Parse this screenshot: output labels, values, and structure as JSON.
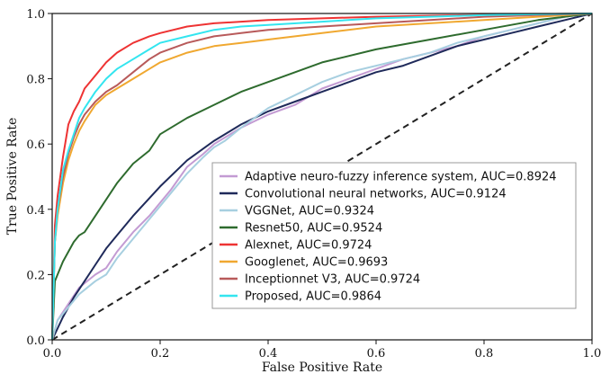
{
  "chart_data": {
    "type": "line",
    "title": "",
    "xlabel": "False Positive Rate",
    "ylabel": "True Positive Rate",
    "xlim": [
      0,
      1
    ],
    "ylim": [
      0,
      1
    ],
    "x_ticks": [
      "0.0",
      "0.2",
      "0.4",
      "0.6",
      "0.8",
      "1.0"
    ],
    "y_ticks": [
      "0.0",
      "0.2",
      "0.4",
      "0.6",
      "0.8",
      "1.0"
    ],
    "grid": false,
    "legend_position": "lower-right",
    "diagonal_reference": {
      "x": [
        0,
        1
      ],
      "y": [
        0,
        1
      ],
      "style": "dashed",
      "color": "#222222"
    },
    "series": [
      {
        "name": "Adaptive neuro-fuzzy inference system, AUC=0.8924",
        "color": "#c39bd3",
        "x": [
          0,
          0.01,
          0.03,
          0.05,
          0.08,
          0.1,
          0.12,
          0.15,
          0.18,
          0.2,
          0.22,
          0.25,
          0.28,
          0.3,
          0.32,
          0.35,
          0.4,
          0.45,
          0.5,
          0.55,
          0.6,
          0.65,
          0.7,
          0.75,
          0.8,
          0.85,
          0.9,
          0.95,
          1.0
        ],
        "y": [
          0,
          0.06,
          0.11,
          0.16,
          0.2,
          0.22,
          0.27,
          0.33,
          0.38,
          0.42,
          0.46,
          0.53,
          0.57,
          0.6,
          0.62,
          0.65,
          0.69,
          0.72,
          0.77,
          0.8,
          0.83,
          0.86,
          0.88,
          0.9,
          0.93,
          0.95,
          0.97,
          0.99,
          1.0
        ]
      },
      {
        "name": "Convolutional neural networks, AUC=0.9124",
        "color": "#1f2a5a",
        "x": [
          0,
          0.02,
          0.04,
          0.06,
          0.08,
          0.1,
          0.12,
          0.15,
          0.2,
          0.25,
          0.3,
          0.35,
          0.4,
          0.45,
          0.5,
          0.55,
          0.6,
          0.65,
          0.7,
          0.75,
          0.8,
          0.85,
          0.9,
          0.95,
          1.0
        ],
        "y": [
          0,
          0.07,
          0.13,
          0.18,
          0.23,
          0.28,
          0.32,
          0.38,
          0.47,
          0.55,
          0.61,
          0.66,
          0.7,
          0.73,
          0.76,
          0.79,
          0.82,
          0.84,
          0.87,
          0.9,
          0.92,
          0.94,
          0.96,
          0.98,
          1.0
        ]
      },
      {
        "name": "VGGNet, AUC=0.9324",
        "color": "#a7cfe0",
        "x": [
          0,
          0.01,
          0.03,
          0.05,
          0.08,
          0.1,
          0.12,
          0.15,
          0.18,
          0.2,
          0.22,
          0.25,
          0.28,
          0.3,
          0.32,
          0.35,
          0.4,
          0.45,
          0.5,
          0.55,
          0.6,
          0.65,
          0.7,
          0.75,
          0.8,
          0.85,
          0.9,
          0.95,
          1.0
        ],
        "y": [
          0,
          0.06,
          0.1,
          0.14,
          0.18,
          0.2,
          0.25,
          0.31,
          0.37,
          0.41,
          0.45,
          0.51,
          0.56,
          0.59,
          0.61,
          0.65,
          0.71,
          0.75,
          0.79,
          0.82,
          0.84,
          0.86,
          0.88,
          0.91,
          0.93,
          0.95,
          0.97,
          0.99,
          1.0
        ]
      },
      {
        "name": "Resnet50, AUC=0.9524",
        "color": "#2e6b2e",
        "x": [
          0,
          0.005,
          0.01,
          0.02,
          0.03,
          0.04,
          0.05,
          0.06,
          0.08,
          0.1,
          0.12,
          0.15,
          0.18,
          0.2,
          0.25,
          0.3,
          0.35,
          0.4,
          0.45,
          0.5,
          0.6,
          0.7,
          0.8,
          0.9,
          1.0
        ],
        "y": [
          0,
          0.18,
          0.2,
          0.24,
          0.27,
          0.3,
          0.32,
          0.33,
          0.38,
          0.43,
          0.48,
          0.54,
          0.58,
          0.63,
          0.68,
          0.72,
          0.76,
          0.79,
          0.82,
          0.85,
          0.89,
          0.92,
          0.95,
          0.98,
          1.0
        ]
      },
      {
        "name": "Alexnet, AUC=0.9724",
        "color": "#ee3333",
        "x": [
          0,
          0.005,
          0.01,
          0.02,
          0.03,
          0.04,
          0.05,
          0.06,
          0.08,
          0.1,
          0.12,
          0.15,
          0.18,
          0.2,
          0.25,
          0.3,
          0.35,
          0.4,
          0.5,
          0.6,
          0.7,
          0.8,
          0.9,
          1.0
        ],
        "y": [
          0,
          0.35,
          0.44,
          0.56,
          0.66,
          0.7,
          0.73,
          0.77,
          0.81,
          0.85,
          0.88,
          0.91,
          0.93,
          0.94,
          0.96,
          0.97,
          0.975,
          0.98,
          0.985,
          0.99,
          0.993,
          0.996,
          0.998,
          1.0
        ]
      },
      {
        "name": "Googlenet, AUC=0.9693",
        "color": "#f0a830",
        "x": [
          0,
          0.005,
          0.01,
          0.02,
          0.03,
          0.04,
          0.05,
          0.06,
          0.08,
          0.1,
          0.12,
          0.15,
          0.18,
          0.2,
          0.25,
          0.3,
          0.35,
          0.4,
          0.5,
          0.6,
          0.7,
          0.8,
          0.9,
          1.0
        ],
        "y": [
          0,
          0.3,
          0.38,
          0.48,
          0.55,
          0.6,
          0.64,
          0.67,
          0.72,
          0.75,
          0.77,
          0.8,
          0.83,
          0.85,
          0.88,
          0.9,
          0.91,
          0.92,
          0.94,
          0.96,
          0.97,
          0.98,
          0.99,
          1.0
        ]
      },
      {
        "name": "Inceptionnet V3, AUC=0.9724",
        "color": "#b85a5a",
        "x": [
          0,
          0.005,
          0.01,
          0.02,
          0.03,
          0.04,
          0.05,
          0.06,
          0.08,
          0.1,
          0.12,
          0.15,
          0.18,
          0.2,
          0.25,
          0.3,
          0.35,
          0.4,
          0.5,
          0.6,
          0.7,
          0.8,
          0.9,
          1.0
        ],
        "y": [
          0,
          0.3,
          0.4,
          0.5,
          0.57,
          0.62,
          0.66,
          0.69,
          0.73,
          0.76,
          0.78,
          0.82,
          0.86,
          0.88,
          0.91,
          0.93,
          0.94,
          0.95,
          0.96,
          0.97,
          0.98,
          0.99,
          0.995,
          1.0
        ]
      },
      {
        "name": "Proposed, AUC=0.9864",
        "color": "#33e5ef",
        "x": [
          0,
          0.005,
          0.01,
          0.02,
          0.03,
          0.04,
          0.05,
          0.06,
          0.08,
          0.1,
          0.12,
          0.15,
          0.18,
          0.2,
          0.25,
          0.3,
          0.35,
          0.4,
          0.5,
          0.6,
          0.7,
          0.8,
          0.9,
          1.0
        ],
        "y": [
          0,
          0.3,
          0.4,
          0.52,
          0.58,
          0.63,
          0.68,
          0.71,
          0.76,
          0.8,
          0.83,
          0.86,
          0.89,
          0.91,
          0.93,
          0.95,
          0.96,
          0.965,
          0.975,
          0.985,
          0.99,
          0.995,
          0.998,
          1.0
        ]
      }
    ]
  }
}
